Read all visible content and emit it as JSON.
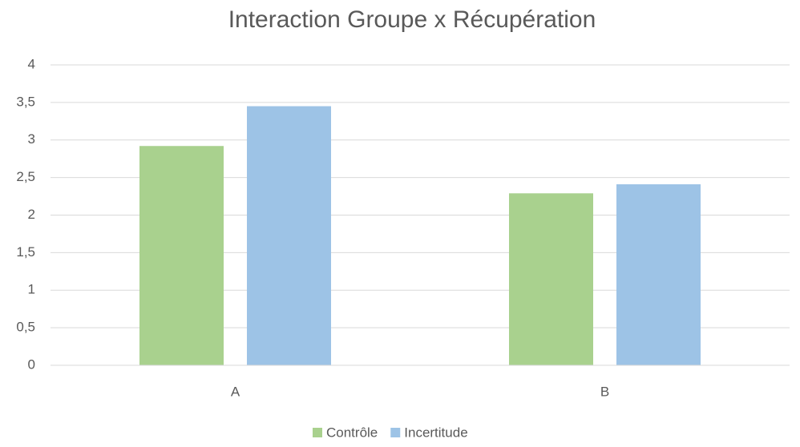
{
  "chart_data": {
    "type": "bar",
    "title": "Interaction Groupe x Récupération",
    "categories": [
      "A",
      "B"
    ],
    "series": [
      {
        "name": "Contrôle",
        "color": "#a9d18e",
        "values": [
          2.92,
          2.29
        ]
      },
      {
        "name": "Incertitude",
        "color": "#9dc3e6",
        "values": [
          3.45,
          2.41
        ]
      }
    ],
    "ylim": [
      0,
      4
    ],
    "yticks": [
      0,
      {
        "value": 0.5,
        "label": "0,5"
      },
      1,
      {
        "value": 1.5,
        "label": "1,5"
      },
      2,
      {
        "value": 2.5,
        "label": "2,5"
      },
      3,
      {
        "value": 3.5,
        "label": "3,5"
      },
      4
    ],
    "grid": true,
    "legend": "bottom"
  }
}
